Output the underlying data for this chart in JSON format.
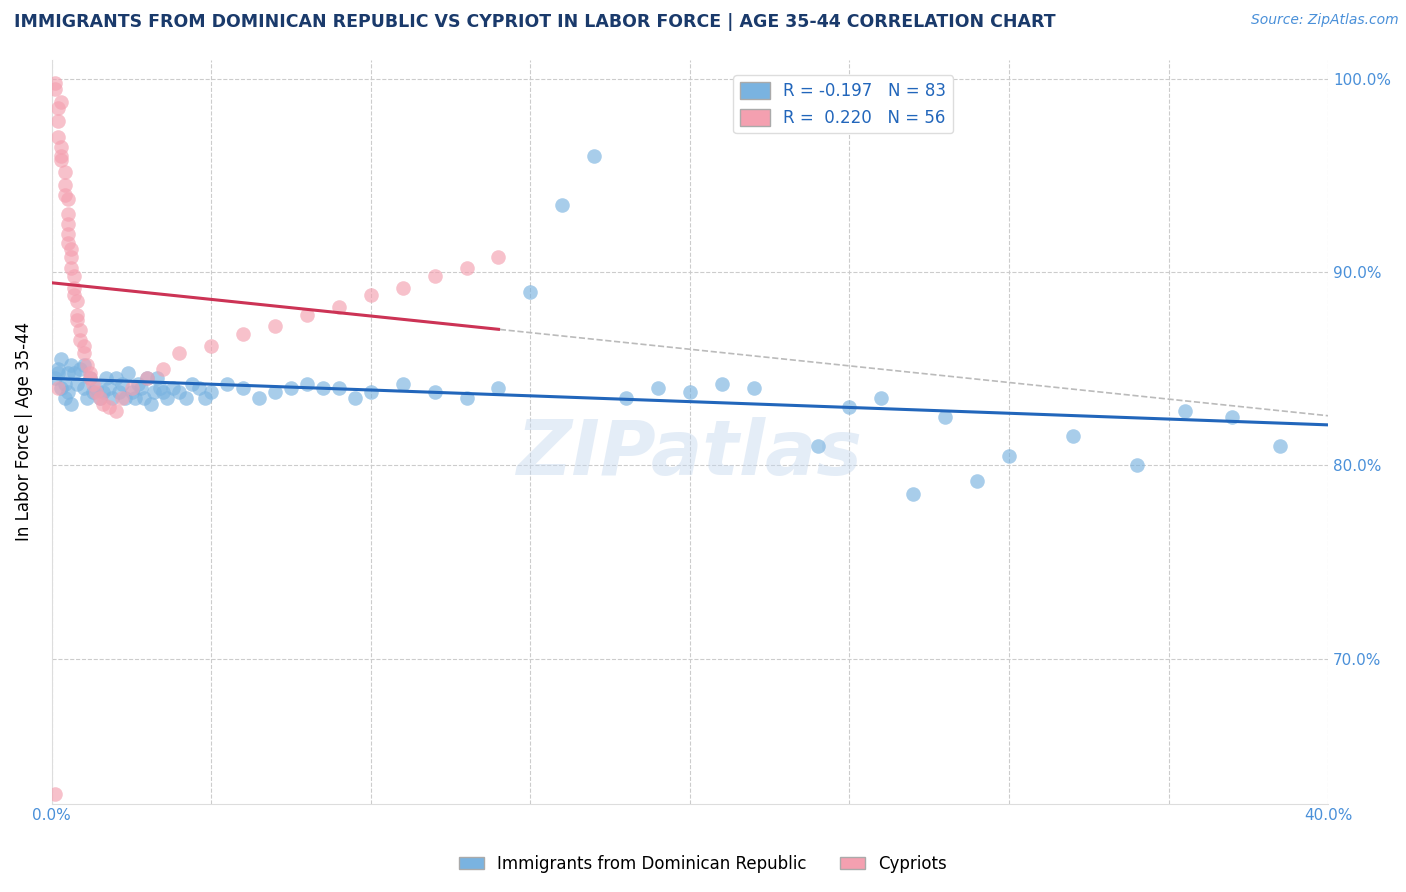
{
  "title": "IMMIGRANTS FROM DOMINICAN REPUBLIC VS CYPRIOT IN LABOR FORCE | AGE 35-44 CORRELATION CHART",
  "source_text": "Source: ZipAtlas.com",
  "ylabel": "In Labor Force | Age 35-44",
  "r_blue": -0.197,
  "n_blue": 83,
  "r_pink": 0.22,
  "n_pink": 56,
  "xlim": [
    0.0,
    0.4
  ],
  "ylim": [
    0.625,
    1.01
  ],
  "title_color": "#1a3a6b",
  "source_color": "#4a90d9",
  "blue_color": "#7ab3e0",
  "pink_color": "#f4a0b0",
  "blue_line_color": "#2266bb",
  "pink_line_color": "#cc3355",
  "axis_label_color": "#4a90d9",
  "watermark": "ZIPatlas",
  "blue_scatter_x": [
    0.001,
    0.002,
    0.002,
    0.003,
    0.003,
    0.004,
    0.004,
    0.005,
    0.005,
    0.006,
    0.006,
    0.007,
    0.008,
    0.009,
    0.01,
    0.01,
    0.011,
    0.012,
    0.013,
    0.014,
    0.015,
    0.016,
    0.017,
    0.018,
    0.019,
    0.02,
    0.021,
    0.022,
    0.023,
    0.024,
    0.025,
    0.026,
    0.027,
    0.028,
    0.029,
    0.03,
    0.031,
    0.032,
    0.033,
    0.034,
    0.035,
    0.036,
    0.038,
    0.04,
    0.042,
    0.044,
    0.046,
    0.048,
    0.05,
    0.055,
    0.06,
    0.065,
    0.07,
    0.075,
    0.08,
    0.085,
    0.09,
    0.095,
    0.1,
    0.11,
    0.12,
    0.13,
    0.14,
    0.15,
    0.16,
    0.17,
    0.18,
    0.19,
    0.2,
    0.21,
    0.22,
    0.24,
    0.26,
    0.28,
    0.3,
    0.32,
    0.34,
    0.355,
    0.37,
    0.385,
    0.27,
    0.29,
    0.25
  ],
  "blue_scatter_y": [
    0.845,
    0.848,
    0.85,
    0.84,
    0.855,
    0.842,
    0.835,
    0.848,
    0.838,
    0.852,
    0.832,
    0.848,
    0.842,
    0.85,
    0.84,
    0.852,
    0.835,
    0.845,
    0.838,
    0.84,
    0.835,
    0.838,
    0.845,
    0.84,
    0.835,
    0.845,
    0.838,
    0.842,
    0.835,
    0.848,
    0.838,
    0.835,
    0.842,
    0.84,
    0.835,
    0.845,
    0.832,
    0.838,
    0.845,
    0.84,
    0.838,
    0.835,
    0.84,
    0.838,
    0.835,
    0.842,
    0.84,
    0.835,
    0.838,
    0.842,
    0.84,
    0.835,
    0.838,
    0.84,
    0.842,
    0.84,
    0.84,
    0.835,
    0.838,
    0.842,
    0.838,
    0.835,
    0.84,
    0.89,
    0.935,
    0.96,
    0.835,
    0.84,
    0.838,
    0.842,
    0.84,
    0.81,
    0.835,
    0.825,
    0.805,
    0.815,
    0.8,
    0.828,
    0.825,
    0.81,
    0.785,
    0.792,
    0.83
  ],
  "pink_scatter_x": [
    0.001,
    0.001,
    0.002,
    0.002,
    0.002,
    0.003,
    0.003,
    0.003,
    0.003,
    0.004,
    0.004,
    0.004,
    0.005,
    0.005,
    0.005,
    0.005,
    0.005,
    0.006,
    0.006,
    0.006,
    0.007,
    0.007,
    0.007,
    0.008,
    0.008,
    0.008,
    0.009,
    0.009,
    0.01,
    0.01,
    0.011,
    0.012,
    0.012,
    0.013,
    0.014,
    0.015,
    0.016,
    0.018,
    0.02,
    0.022,
    0.025,
    0.03,
    0.035,
    0.04,
    0.05,
    0.06,
    0.07,
    0.08,
    0.09,
    0.1,
    0.11,
    0.12,
    0.13,
    0.14,
    0.002,
    0.001
  ],
  "pink_scatter_y": [
    0.998,
    0.995,
    0.985,
    0.978,
    0.97,
    0.988,
    0.965,
    0.958,
    0.96,
    0.952,
    0.945,
    0.94,
    0.938,
    0.93,
    0.925,
    0.92,
    0.915,
    0.912,
    0.908,
    0.902,
    0.898,
    0.892,
    0.888,
    0.885,
    0.878,
    0.875,
    0.87,
    0.865,
    0.862,
    0.858,
    0.852,
    0.848,
    0.845,
    0.842,
    0.838,
    0.835,
    0.832,
    0.83,
    0.828,
    0.835,
    0.84,
    0.845,
    0.85,
    0.858,
    0.862,
    0.868,
    0.872,
    0.878,
    0.882,
    0.888,
    0.892,
    0.898,
    0.902,
    0.908,
    0.84,
    0.63
  ],
  "legend_blue_label": "Immigrants from Dominican Republic",
  "legend_pink_label": "Cypriots"
}
